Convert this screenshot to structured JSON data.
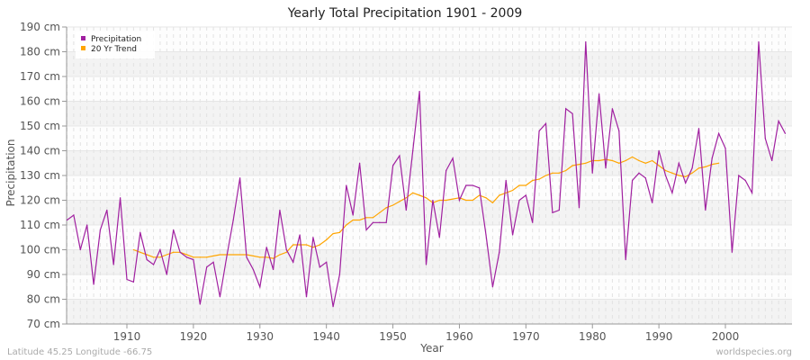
{
  "chart_data": {
    "type": "line",
    "title": "Yearly Total Precipitation 1901 - 2009",
    "xlabel": "Year",
    "ylabel": "Precipitation",
    "xlim": [
      1901,
      2009
    ],
    "ylim": [
      70,
      190
    ],
    "y_unit": "cm",
    "xticks": [
      1910,
      1920,
      1930,
      1940,
      1950,
      1960,
      1970,
      1980,
      1990,
      2000
    ],
    "yticks": [
      70,
      80,
      90,
      100,
      110,
      120,
      130,
      140,
      150,
      160,
      170,
      180,
      190
    ],
    "ytick_labels": [
      "70 cm",
      "80 cm",
      "90 cm",
      "100 cm",
      "110 cm",
      "120 cm",
      "130 cm",
      "140 cm",
      "150 cm",
      "160 cm",
      "170 cm",
      "180 cm",
      "190 cm"
    ],
    "grid": true,
    "legend_position": "top-left",
    "series": [
      {
        "name": "Precipitation",
        "color": "#a020a0",
        "x": [
          1901,
          1902,
          1903,
          1904,
          1905,
          1906,
          1907,
          1908,
          1909,
          1910,
          1911,
          1912,
          1913,
          1914,
          1915,
          1916,
          1917,
          1918,
          1919,
          1920,
          1921,
          1922,
          1923,
          1924,
          1925,
          1926,
          1927,
          1928,
          1929,
          1930,
          1931,
          1932,
          1933,
          1934,
          1935,
          1936,
          1937,
          1938,
          1939,
          1940,
          1941,
          1942,
          1943,
          1944,
          1945,
          1946,
          1947,
          1948,
          1949,
          1950,
          1951,
          1952,
          1953,
          1954,
          1955,
          1956,
          1957,
          1958,
          1959,
          1960,
          1961,
          1962,
          1963,
          1964,
          1965,
          1966,
          1967,
          1968,
          1969,
          1970,
          1971,
          1972,
          1973,
          1974,
          1975,
          1976,
          1977,
          1978,
          1979,
          1980,
          1981,
          1982,
          1983,
          1984,
          1985,
          1986,
          1987,
          1988,
          1989,
          1990,
          1991,
          1992,
          1993,
          1994,
          1995,
          1996,
          1997,
          1998,
          1999,
          2000,
          2001,
          2002,
          2003,
          2004,
          2005,
          2006,
          2007,
          2008,
          2009
        ],
        "y": [
          112,
          114,
          100,
          110,
          86,
          108,
          116,
          94,
          121,
          88,
          87,
          107,
          96,
          94,
          100,
          90,
          108,
          99,
          97,
          96,
          78,
          93,
          95,
          81,
          97,
          112,
          129,
          97,
          92,
          85,
          101,
          92,
          116,
          100,
          95,
          106,
          81,
          105,
          93,
          95,
          77,
          90,
          126,
          114,
          135,
          108,
          111,
          111,
          111,
          134,
          138,
          116,
          140,
          164,
          94,
          120,
          105,
          132,
          137,
          120,
          126,
          126,
          125,
          106,
          85,
          99,
          128,
          106,
          120,
          122,
          111,
          148,
          151,
          115,
          116,
          157,
          155,
          117,
          184,
          131,
          163,
          133,
          157,
          148,
          96,
          128,
          131,
          129,
          119,
          140,
          130,
          123,
          135,
          127,
          133,
          149,
          116,
          137,
          147,
          141,
          99,
          130,
          128,
          123,
          184,
          145,
          136,
          152,
          147
        ]
      },
      {
        "name": "20 Yr Trend",
        "color": "#ffa500",
        "x": [
          1911,
          1912,
          1913,
          1914,
          1915,
          1916,
          1917,
          1918,
          1919,
          1920,
          1921,
          1922,
          1923,
          1924,
          1925,
          1926,
          1927,
          1928,
          1929,
          1930,
          1931,
          1932,
          1933,
          1934,
          1935,
          1936,
          1937,
          1938,
          1939,
          1940,
          1941,
          1942,
          1943,
          1944,
          1945,
          1946,
          1947,
          1948,
          1949,
          1950,
          1951,
          1952,
          1953,
          1954,
          1955,
          1956,
          1957,
          1958,
          1959,
          1960,
          1961,
          1962,
          1963,
          1964,
          1965,
          1966,
          1967,
          1968,
          1969,
          1970,
          1971,
          1972,
          1973,
          1974,
          1975,
          1976,
          1977,
          1978,
          1979,
          1980,
          1981,
          1982,
          1983,
          1984,
          1985,
          1986,
          1987,
          1988,
          1989,
          1990,
          1991,
          1992,
          1993,
          1994,
          1995,
          1996,
          1997,
          1998,
          1999
        ],
        "y": [
          100,
          99,
          98,
          97,
          97,
          98,
          99,
          99,
          98,
          97,
          97,
          97,
          97.5,
          98,
          98,
          98,
          98,
          98,
          97.5,
          97,
          97,
          96.5,
          98,
          99,
          102,
          102,
          102,
          101,
          102,
          104,
          106.5,
          107,
          110,
          112,
          112,
          113,
          113,
          115,
          117,
          118,
          119.5,
          121,
          123,
          122,
          121,
          119,
          120,
          120,
          120.5,
          121,
          120,
          120,
          122,
          121,
          119,
          122,
          123,
          124,
          126,
          126,
          128,
          128.5,
          130,
          131,
          131,
          132,
          134,
          134.5,
          135,
          136,
          136,
          136.5,
          136,
          135,
          136,
          137.5,
          136,
          135,
          136,
          134,
          132,
          131,
          130,
          129.5,
          131,
          133,
          133.5,
          134.5,
          135
        ]
      }
    ]
  },
  "footer": {
    "location": "Latitude 45.25 Longitude -66.75",
    "site": "worldspecies.org"
  }
}
